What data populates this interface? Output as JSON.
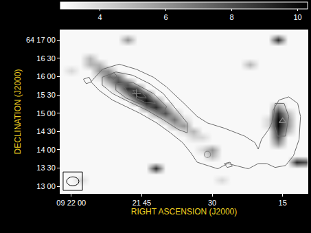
{
  "chart_data": {
    "type": "heatmap",
    "x_label": "RIGHT ASCENSION (J2000)",
    "y_label": "DECLINATION (J2000)",
    "xlim": [
      62.3,
      9.7
    ],
    "ylim": [
      -11,
      256
    ],
    "xticks": [
      {
        "value": 60,
        "label": "09 22 00"
      },
      {
        "value": 45,
        "label": "21 45"
      },
      {
        "value": 30,
        "label": "30"
      },
      {
        "value": 15,
        "label": "15"
      }
    ],
    "yticks": [
      {
        "value": 240,
        "label": "64 17 00"
      },
      {
        "value": 210,
        "label": "16 30"
      },
      {
        "value": 180,
        "label": "16 00"
      },
      {
        "value": 150,
        "label": "15 30"
      },
      {
        "value": 120,
        "label": "15 00"
      },
      {
        "value": 90,
        "label": "14 30"
      },
      {
        "value": 60,
        "label": "14 00"
      },
      {
        "value": 30,
        "label": "13 30"
      },
      {
        "value": 0,
        "label": "13 00"
      }
    ],
    "grid": false,
    "colorbar": {
      "range": [
        2.8,
        10.3
      ],
      "ticks": [
        4,
        6,
        8,
        10
      ]
    },
    "x": [
      62,
      60,
      58,
      56,
      54,
      52,
      50,
      48,
      46,
      44,
      42,
      40,
      38,
      36,
      34,
      32,
      30,
      28,
      26,
      24,
      22,
      20,
      18,
      16,
      14,
      12,
      10
    ],
    "y": [
      250,
      240,
      230,
      220,
      210,
      200,
      190,
      180,
      170,
      160,
      150,
      140,
      130,
      120,
      110,
      100,
      90,
      80,
      70,
      60,
      50,
      40,
      30,
      20,
      10,
      0,
      -10
    ],
    "z": [
      [
        3,
        3,
        3,
        3,
        3,
        3,
        3,
        3,
        3,
        3,
        3,
        3,
        3,
        3,
        3,
        3,
        3,
        3,
        3,
        3,
        3,
        3,
        3,
        3,
        3,
        3,
        3
      ],
      [
        3,
        3,
        3,
        3,
        3,
        3,
        3,
        6,
        3,
        3,
        3,
        3,
        3,
        3,
        3,
        3,
        3,
        3,
        3,
        3,
        3,
        3,
        3,
        9,
        3,
        3,
        3
      ],
      [
        3,
        3,
        3,
        3,
        3,
        3,
        3,
        3,
        3,
        3,
        3,
        3,
        3,
        3,
        3,
        3,
        3,
        3,
        3,
        3,
        3,
        3,
        3,
        3,
        3,
        3,
        3
      ],
      [
        3,
        3,
        3,
        3,
        3,
        3,
        3,
        3,
        3,
        3,
        3,
        3,
        3,
        3,
        3,
        3,
        3,
        3,
        3,
        3,
        3,
        3,
        3,
        3,
        3,
        3,
        3
      ],
      [
        3,
        3,
        3,
        5,
        3,
        3,
        3,
        3,
        3,
        3,
        3,
        3,
        3,
        3,
        3,
        3,
        3,
        3,
        3,
        3,
        3,
        3,
        3,
        3,
        3,
        3,
        3
      ],
      [
        3,
        3,
        3,
        5,
        5,
        3,
        3,
        3,
        3,
        3,
        3,
        3,
        3,
        3,
        3,
        3,
        3,
        3,
        3,
        3,
        5,
        3,
        3,
        3,
        3,
        3,
        3
      ],
      [
        3,
        4,
        3,
        3,
        6,
        6,
        3,
        3,
        3,
        3,
        3,
        3,
        3,
        3,
        3,
        3,
        3,
        3,
        3,
        3,
        3,
        3,
        3,
        3,
        3,
        3,
        3
      ],
      [
        3,
        3,
        3,
        3,
        4,
        7,
        7,
        3,
        3,
        3,
        3,
        3,
        3,
        3,
        3,
        3,
        3,
        3,
        3,
        3,
        3,
        3,
        3,
        3,
        3,
        3,
        3
      ],
      [
        3,
        3,
        3,
        3,
        3,
        5,
        8,
        7,
        3,
        3,
        3,
        3,
        3,
        3,
        3,
        3,
        3,
        3,
        3,
        3,
        3,
        3,
        3,
        3,
        3,
        3,
        3
      ],
      [
        3,
        3,
        3,
        3,
        3,
        3,
        5,
        9,
        8,
        3,
        3,
        3,
        3,
        3,
        3,
        3,
        3,
        3,
        3,
        3,
        3,
        3,
        3,
        3,
        3,
        3,
        3
      ],
      [
        3,
        3,
        3,
        3,
        3,
        3,
        3,
        6,
        10,
        8,
        3,
        3,
        3,
        3,
        3,
        3,
        3,
        3,
        3,
        3,
        3,
        3,
        3,
        3,
        3,
        3,
        3
      ],
      [
        3,
        3,
        3,
        3,
        3,
        3,
        3,
        3,
        7,
        10,
        7,
        3,
        3,
        3,
        3,
        3,
        3,
        3,
        3,
        3,
        3,
        3,
        3,
        3,
        3,
        3,
        3
      ],
      [
        3,
        3,
        3,
        3,
        3,
        3,
        3,
        3,
        3,
        7,
        9,
        6,
        3,
        3,
        3,
        3,
        3,
        3,
        3,
        3,
        3,
        3,
        3,
        6,
        3,
        3,
        3
      ],
      [
        3,
        3,
        3,
        3,
        3,
        3,
        3,
        3,
        3,
        3,
        6,
        8,
        5,
        3,
        3,
        3,
        3,
        3,
        3,
        3,
        3,
        3,
        3,
        9,
        5,
        3,
        3
      ],
      [
        3,
        3,
        3,
        3,
        3,
        3,
        3,
        3,
        3,
        3,
        3,
        5,
        7,
        4,
        3,
        3,
        3,
        3,
        3,
        3,
        3,
        3,
        4,
        10,
        6,
        3,
        3
      ],
      [
        3,
        3,
        3,
        3,
        3,
        3,
        3,
        3,
        3,
        3,
        3,
        3,
        5,
        6,
        3,
        3,
        3,
        3,
        3,
        3,
        3,
        3,
        4,
        10,
        6,
        3,
        3
      ],
      [
        3,
        3,
        3,
        3,
        3,
        3,
        3,
        3,
        3,
        3,
        3,
        3,
        3,
        4,
        5,
        3,
        3,
        3,
        3,
        3,
        3,
        3,
        3,
        9,
        5,
        3,
        3
      ],
      [
        3,
        3,
        3,
        3,
        3,
        3,
        3,
        3,
        3,
        3,
        3,
        3,
        3,
        3,
        4,
        4,
        3,
        3,
        3,
        3,
        3,
        3,
        3,
        8,
        3,
        3,
        3
      ],
      [
        3,
        3,
        3,
        3,
        3,
        3,
        3,
        3,
        3,
        3,
        3,
        3,
        3,
        3,
        3,
        3,
        3,
        3,
        3,
        3,
        3,
        3,
        3,
        6,
        3,
        3,
        3
      ],
      [
        3,
        3,
        3,
        3,
        3,
        3,
        3,
        3,
        3,
        3,
        3,
        3,
        3,
        3,
        3,
        4,
        6,
        3,
        3,
        3,
        3,
        3,
        3,
        3,
        3,
        3,
        3
      ],
      [
        3,
        3,
        3,
        3,
        3,
        3,
        3,
        3,
        3,
        3,
        3,
        3,
        3,
        3,
        3,
        3,
        5,
        3,
        3,
        3,
        3,
        3,
        3,
        3,
        3,
        3,
        3
      ],
      [
        3,
        3,
        3,
        3,
        3,
        3,
        3,
        3,
        3,
        3,
        3,
        3,
        3,
        3,
        3,
        3,
        3,
        3,
        3,
        3,
        3,
        3,
        3,
        3,
        3,
        9,
        8
      ],
      [
        3,
        3,
        3,
        3,
        3,
        3,
        3,
        3,
        3,
        3,
        9,
        3,
        3,
        3,
        3,
        3,
        3,
        3,
        3,
        3,
        3,
        3,
        3,
        3,
        3,
        3,
        3
      ],
      [
        3,
        3,
        3,
        3,
        3,
        3,
        3,
        3,
        3,
        3,
        3,
        3,
        3,
        3,
        3,
        3,
        3,
        3,
        3,
        3,
        3,
        3,
        3,
        3,
        3,
        3,
        3
      ],
      [
        3,
        3,
        4,
        3,
        3,
        3,
        3,
        3,
        3,
        3,
        3,
        3,
        3,
        3,
        3,
        3,
        3,
        4,
        3,
        3,
        3,
        3,
        3,
        3,
        3,
        3,
        3
      ],
      [
        3,
        3,
        3,
        3,
        3,
        3,
        3,
        3,
        3,
        3,
        3,
        3,
        3,
        3,
        3,
        3,
        3,
        3,
        3,
        3,
        3,
        3,
        3,
        3,
        3,
        3,
        3
      ],
      [
        3,
        3,
        3,
        3,
        3,
        3,
        3,
        3,
        3,
        3,
        3,
        3,
        3,
        3,
        3,
        3,
        3,
        3,
        3,
        3,
        3,
        3,
        3,
        3,
        3,
        3,
        3
      ]
    ],
    "contours": [
      {
        "x": [
          55.8,
          53.4,
          49.8,
          46.1,
          42.5,
          39.7,
          36.0,
          33.2,
          31.0,
          27.4,
          23.1,
          20.9,
          20.2,
          19.5,
          18.0,
          17.3,
          17.0,
          15.8,
          13.7,
          11.8,
          11.2,
          11.5,
          12.7,
          14.4,
          16.6,
          18.4,
          20.2,
          22.3,
          24.5,
          26.7,
          28.8,
          31.0,
          33.2,
          34.6,
          36.3,
          38.9,
          41.8,
          45.4,
          48.3,
          51.2,
          54.1
        ],
        "y": [
          171.5,
          191.9,
          200.4,
          191.9,
          179.0,
          162.9,
          136.1,
          114.7,
          104.0,
          95.4,
          82.5,
          71.8,
          61.1,
          77.2,
          93.2,
          104.0,
          125.4,
          141.5,
          146.8,
          136.1,
          114.7,
          77.2,
          50.4,
          34.3,
          31.1,
          37.5,
          37.5,
          28.9,
          33.2,
          37.5,
          28.9,
          34.3,
          39.7,
          55.7,
          71.8,
          87.9,
          104.0,
          120.0,
          130.8,
          141.5,
          157.6
        ]
      },
      {
        "x": [
          53.4,
          50.5,
          46.9,
          43.3,
          40.4,
          37.5,
          35.3,
          35.3,
          37.2,
          40.4,
          44.0,
          47.6,
          51.2,
          53.4
        ],
        "y": [
          179.0,
          187.6,
          182.2,
          168.3,
          152.2,
          125.4,
          104.0,
          87.9,
          93.2,
          109.3,
          125.4,
          138.3,
          152.2,
          166.1
        ]
      },
      {
        "x": [
          50.5,
          46.9,
          42.5,
          39.7,
          40.4,
          44.0,
          48.3,
          50.5
        ],
        "y": [
          168.3,
          170.4,
          152.2,
          130.8,
          120.0,
          130.8,
          144.7,
          157.6
        ]
      },
      {
        "x": [
          48.7,
          46.1,
          43.3,
          42.1,
          44.4,
          47.6
        ],
        "y": [
          162.9,
          162.9,
          149.0,
          136.1,
          138.3,
          149.0
        ]
      },
      {
        "x": [
          46.9,
          45.0,
          44.0,
          45.8
        ],
        "y": [
          157.6,
          155.4,
          144.7,
          146.8
        ]
      },
      {
        "x": [
          16.6,
          14.7,
          13.7,
          14.4,
          16.1,
          17.0
        ],
        "y": [
          136.1,
          136.1,
          114.7,
          82.5,
          82.5,
          109.3
        ]
      },
      {
        "x": [
          51.9,
          51.0,
          50.2,
          51.0
        ],
        "y": [
          181.1,
          186.5,
          181.1,
          175.7
        ]
      },
      {
        "x": [
          57.4,
          56.2,
          55.7,
          56.8
        ],
        "y": [
          175.8,
          179.0,
          171.5,
          168.3
        ]
      },
      {
        "x": [
          27.4,
          26.2,
          25.7,
          26.8
        ],
        "y": [
          37.5,
          39.7,
          33.2,
          31.1
        ]
      }
    ],
    "markers": [
      {
        "x": 46.1,
        "y": 152.2,
        "marker": "cross"
      },
      {
        "x": 31.0,
        "y": 52.5,
        "marker": "circle"
      },
      {
        "x": 15.0,
        "y": 107.2,
        "marker": "triangle"
      }
    ]
  }
}
